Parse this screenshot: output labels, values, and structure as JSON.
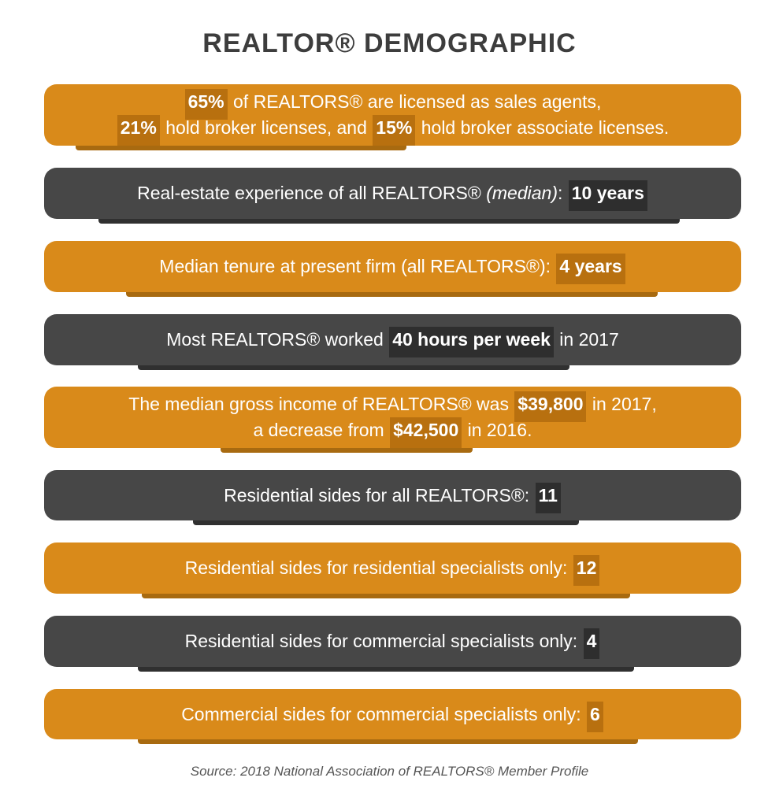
{
  "title": "REALTOR® DEMOGRAPHIC",
  "rows": [
    {
      "line1_hl1": "65%",
      "line1_rest": "of REALTORS® are licensed as sales agents,",
      "line2_hl1": "21%",
      "line2_mid": "hold broker licenses, and",
      "line2_hl2": "15%",
      "line2_rest": "hold broker associate licenses."
    },
    {
      "text_a": "Real-estate experience of all REALTORS®",
      "text_em": "(median)",
      "text_b": ":",
      "hl": "10 years"
    },
    {
      "text_a": "Median tenure at present firm (all REALTORS®):",
      "hl": "4 years"
    },
    {
      "text_a": "Most REALTORS® worked",
      "hl": "40 hours per week",
      "text_b": "in 2017"
    },
    {
      "line1_a": "The median gross income of REALTORS® was",
      "line1_hl": "$39,800",
      "line1_b": "in 2017,",
      "line2_a": "a decrease from",
      "line2_hl": "$42,500",
      "line2_b": "in 2016."
    },
    {
      "text_a": "Residential sides for all REALTORS®:",
      "hl": "11"
    },
    {
      "text_a": "Residential sides for residential specialists only:",
      "hl": "12"
    },
    {
      "text_a": "Residential sides for commercial specialists only:",
      "hl": "4"
    },
    {
      "text_a": "Commercial sides for commercial specialists only:",
      "hl": "6"
    }
  ],
  "source": "Source: 2018 National Association of REALTORS® Member Profile",
  "colors": {
    "orange": "#d98a1a",
    "gray": "#474747"
  }
}
